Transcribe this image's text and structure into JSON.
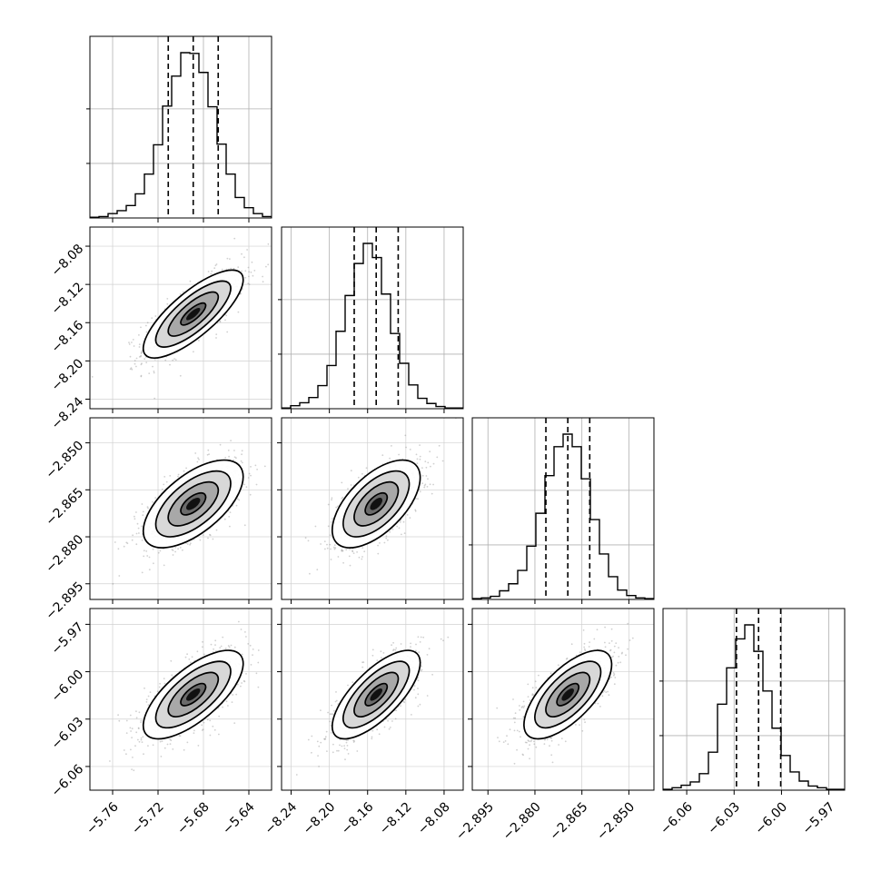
{
  "chart_data": {
    "type": "corner",
    "params": [
      {
        "range": [
          -5.78,
          -5.62
        ],
        "ticks": [
          -5.76,
          -5.72,
          -5.68,
          -5.64
        ],
        "tick_labels": [
          "−5.76",
          "−5.72",
          "−5.68",
          "−5.64"
        ],
        "quantiles": [
          -5.711,
          -5.689,
          -5.667
        ],
        "mean": -5.689,
        "std": 0.022,
        "hist_counts": [
          1,
          2,
          6,
          10,
          17,
          33,
          60,
          100,
          153,
          194,
          226,
          225,
          199,
          152,
          101,
          60,
          28,
          14,
          6,
          2
        ]
      },
      {
        "range": [
          -8.25,
          -8.06
        ],
        "ticks": [
          -8.24,
          -8.2,
          -8.16,
          -8.12,
          -8.08
        ],
        "tick_labels": [
          "−8.24",
          "−8.20",
          "−8.16",
          "−8.12",
          "−8.08"
        ],
        "quantiles": [
          -8.174,
          -8.151,
          -8.128
        ],
        "mean": -8.151,
        "std": 0.023,
        "hist_counts": [
          1,
          4,
          8,
          15,
          31,
          58,
          104,
          152,
          195,
          222,
          203,
          154,
          101,
          61,
          32,
          14,
          7,
          3,
          1,
          1
        ]
      },
      {
        "range": [
          -2.9,
          -2.842
        ],
        "ticks": [
          -2.895,
          -2.88,
          -2.865,
          -2.85
        ],
        "tick_labels": [
          "−2.895",
          "−2.880",
          "−2.865",
          "−2.850"
        ],
        "quantiles": [
          -2.8765,
          -2.8695,
          -2.8625
        ],
        "mean": -2.8695,
        "std": 0.007,
        "hist_counts": [
          1,
          2,
          4,
          11,
          20,
          37,
          68,
          110,
          158,
          195,
          211,
          195,
          154,
          102,
          58,
          29,
          12,
          5,
          2,
          1
        ]
      },
      {
        "range": [
          -6.075,
          -5.96
        ],
        "ticks": [
          -6.06,
          -6.03,
          -6.0,
          -5.97
        ],
        "tick_labels": [
          "−6.06",
          "−6.03",
          "−6.00",
          "−5.97"
        ],
        "quantiles": [
          -6.0285,
          -6.0145,
          -6.0005
        ],
        "mean": -6.0145,
        "std": 0.014,
        "hist_counts": [
          1,
          3,
          6,
          10,
          20,
          46,
          104,
          148,
          183,
          200,
          168,
          120,
          75,
          42,
          22,
          11,
          5,
          3,
          1,
          1
        ]
      }
    ],
    "correlations": [
      [
        1.0,
        0.78,
        0.62,
        0.7
      ],
      [
        0.78,
        1.0,
        0.6,
        0.72
      ],
      [
        0.62,
        0.6,
        1.0,
        0.68
      ],
      [
        0.7,
        0.72,
        0.68,
        1.0
      ]
    ],
    "contour_levels_sigma": [
      0.5,
      1.0,
      1.5,
      2.0
    ],
    "grid": true
  }
}
